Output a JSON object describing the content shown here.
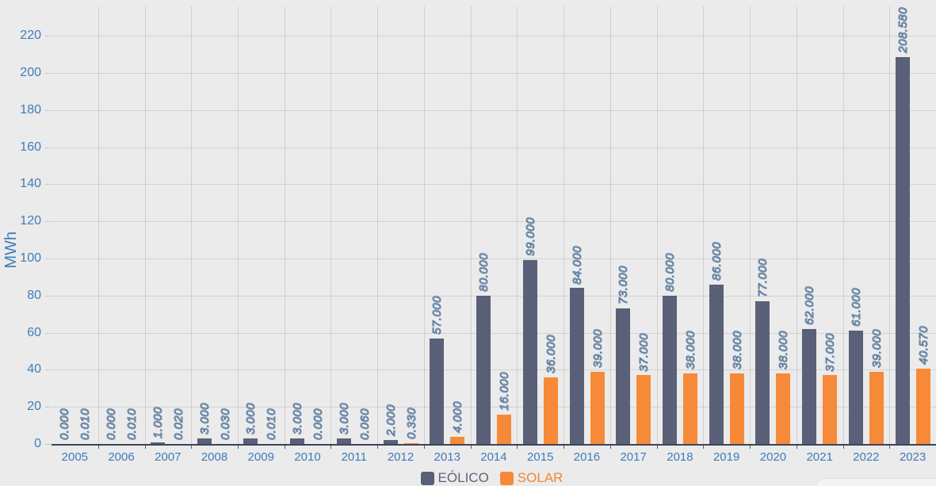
{
  "chart_data": {
    "type": "bar",
    "title": "",
    "xlabel": "",
    "ylabel": "MWh",
    "ylim": [
      0,
      236
    ],
    "y_ticks": [
      0,
      20,
      40,
      60,
      80,
      100,
      120,
      140,
      160,
      180,
      200,
      220
    ],
    "grid": true,
    "legend_position": "bottom",
    "categories": [
      "2005",
      "2006",
      "2007",
      "2008",
      "2009",
      "2010",
      "2011",
      "2012",
      "2013",
      "2014",
      "2015",
      "2016",
      "2017",
      "2018",
      "2019",
      "2020",
      "2021",
      "2022",
      "2023"
    ],
    "series": [
      {
        "name": "EÓLICO",
        "color": "#5a6078",
        "values": [
          0,
          0,
          1,
          3,
          3,
          3,
          3,
          2,
          57,
          80,
          99,
          84,
          73,
          80,
          86,
          77,
          62,
          61,
          208.58
        ],
        "labels": [
          "0.000",
          "0.000",
          "1.000",
          "3.000",
          "3.000",
          "3.000",
          "3.000",
          "2.000",
          "57.000",
          "80.000",
          "99.000",
          "84.000",
          "73.000",
          "80.000",
          "86.000",
          "77.000",
          "62.000",
          "61.000",
          "208.580"
        ]
      },
      {
        "name": "SOLAR",
        "color": "#f68a38",
        "values": [
          0.01,
          0.01,
          0.02,
          0.03,
          0.01,
          0,
          0.06,
          0.33,
          4,
          16,
          36,
          39,
          37,
          38,
          38,
          38,
          37,
          39,
          40.57
        ],
        "labels": [
          "0.010",
          "0.010",
          "0.020",
          "0.030",
          "0.010",
          "0.000",
          "0.060",
          "0.330",
          "4.000",
          "16.000",
          "36.000",
          "39.000",
          "37.000",
          "38.000",
          "38.000",
          "38.000",
          "37.000",
          "39.000",
          "40.570"
        ]
      }
    ]
  },
  "colors": {
    "background": "#ebebeb",
    "axis_line": "#3d4458",
    "tick_label": "#3e7cb9",
    "value_label_stroke": "#5e7e9f",
    "eolico": "#5a6078",
    "solar": "#f68a38",
    "legend_eolico_text": "#5f6577",
    "legend_solar_text": "#f5862e"
  }
}
